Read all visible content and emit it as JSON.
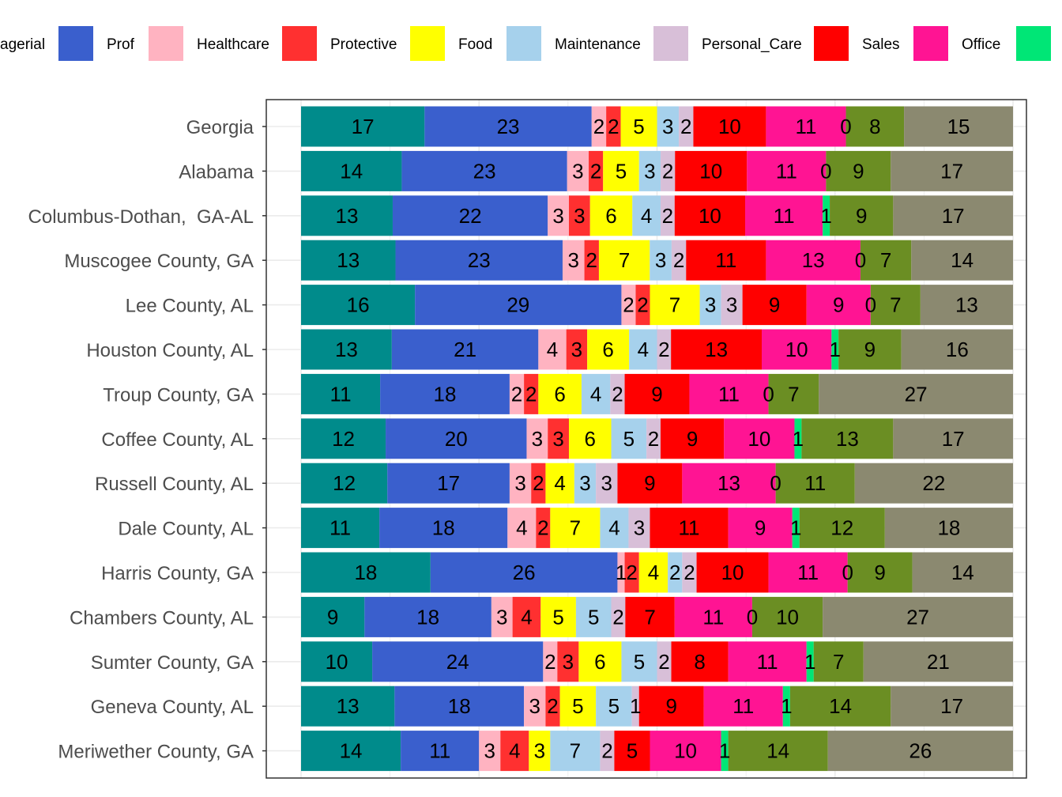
{
  "chart_data": {
    "type": "bar",
    "orientation": "horizontal",
    "stacked": true,
    "normalized": true,
    "legend_position": "top",
    "grid": true,
    "legend_entries": [
      {
        "label": "agerial",
        "color": "#008b8b",
        "legend_swatch": false
      },
      {
        "label": "Prof",
        "color": "#3a5fcd"
      },
      {
        "label": "Healthcare",
        "color": "#ffb3c1"
      },
      {
        "label": "Protective",
        "color": "#ff3030"
      },
      {
        "label": "Food",
        "color": "#ffff00"
      },
      {
        "label": "Maintenance",
        "color": "#a6d1ec"
      },
      {
        "label": "Personal_Care",
        "color": "#d8bfd8"
      },
      {
        "label": "Sales",
        "color": "#ff0000"
      },
      {
        "label": "Office",
        "color": "#ff1493"
      },
      {
        "label": "",
        "color": "#00e676"
      }
    ],
    "segment_colors": [
      "#008b8b",
      "#3a5fcd",
      "#ffb3c1",
      "#ff3030",
      "#ffff00",
      "#a6d1ec",
      "#d8bfd8",
      "#ff0000",
      "#ff1493",
      "#00e676",
      "#6b8e23",
      "#8b8970"
    ],
    "categories": [
      "Georgia",
      "Alabama",
      "Columbus-Dothan,  GA-AL",
      "Muscogee County, GA",
      "Lee County, AL",
      "Houston County, AL",
      "Troup County, GA",
      "Coffee County, AL",
      "Russell County, AL",
      "Dale County, AL",
      "Harris County, GA",
      "Chambers County, AL",
      "Sumter County, GA",
      "Geneva County, AL",
      "Meriwether County, GA"
    ],
    "values": [
      [
        17,
        23,
        2,
        2,
        5,
        3,
        2,
        10,
        11,
        0,
        8,
        15
      ],
      [
        14,
        23,
        3,
        2,
        5,
        3,
        2,
        10,
        11,
        0,
        9,
        17
      ],
      [
        13,
        22,
        3,
        3,
        6,
        4,
        2,
        10,
        11,
        1,
        9,
        17
      ],
      [
        13,
        23,
        3,
        2,
        7,
        3,
        2,
        11,
        13,
        0,
        7,
        14
      ],
      [
        16,
        29,
        2,
        2,
        7,
        3,
        3,
        9,
        9,
        0,
        7,
        13
      ],
      [
        13,
        21,
        4,
        3,
        6,
        4,
        2,
        13,
        10,
        1,
        9,
        16
      ],
      [
        11,
        18,
        2,
        2,
        6,
        4,
        2,
        9,
        11,
        0,
        7,
        27
      ],
      [
        12,
        20,
        3,
        3,
        6,
        5,
        2,
        9,
        10,
        1,
        13,
        17
      ],
      [
        12,
        17,
        3,
        2,
        4,
        3,
        3,
        9,
        13,
        0,
        11,
        22
      ],
      [
        11,
        18,
        4,
        2,
        7,
        4,
        3,
        11,
        9,
        1,
        12,
        18
      ],
      [
        18,
        26,
        1,
        2,
        4,
        2,
        2,
        10,
        11,
        0,
        9,
        14
      ],
      [
        9,
        18,
        3,
        4,
        5,
        5,
        2,
        7,
        11,
        0,
        10,
        27
      ],
      [
        10,
        24,
        2,
        3,
        6,
        5,
        2,
        8,
        11,
        1,
        7,
        21
      ],
      [
        13,
        18,
        3,
        2,
        5,
        5,
        1,
        9,
        11,
        1,
        14,
        17
      ],
      [
        14,
        11,
        3,
        4,
        3,
        7,
        2,
        5,
        10,
        1,
        14,
        26
      ]
    ]
  }
}
